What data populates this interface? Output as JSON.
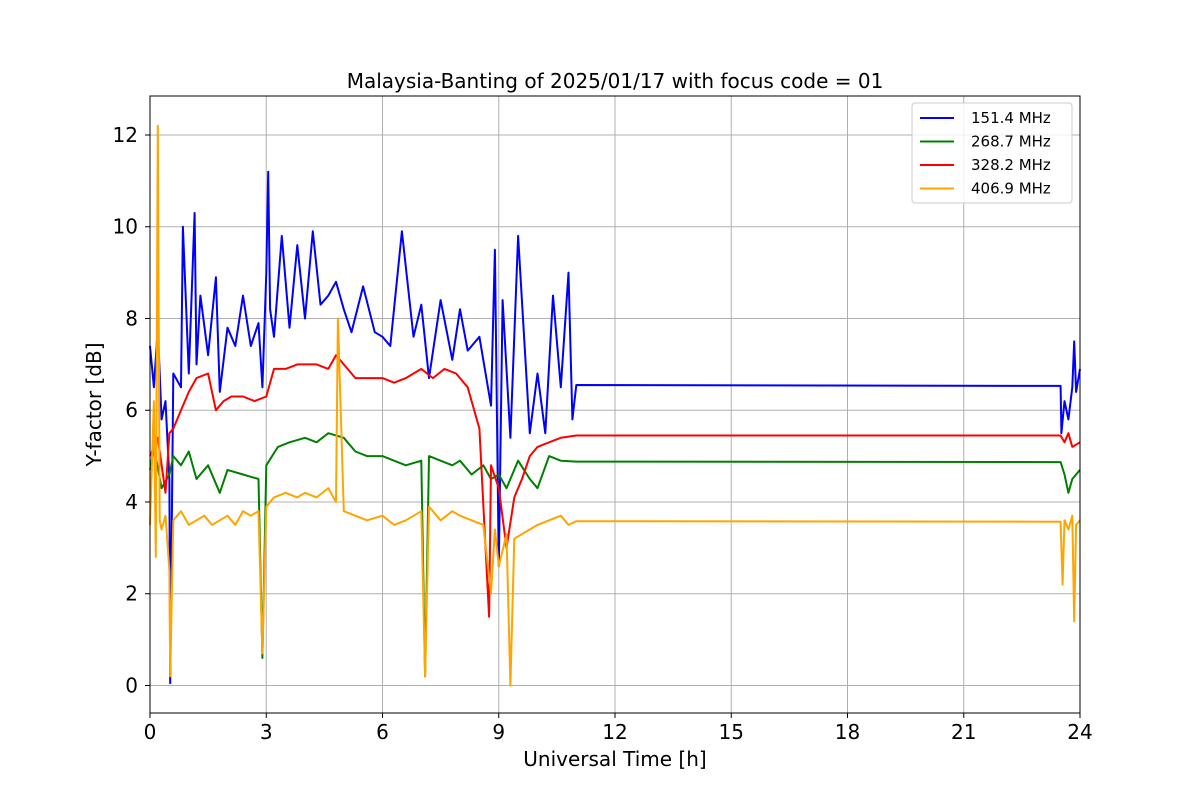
{
  "chart_data": {
    "type": "line",
    "title": "Malaysia-Banting of 2025/01/17 with focus code = 01",
    "xlabel": "Universal Time [h]",
    "ylabel": "Y-factor [dB]",
    "xlim": [
      0,
      24
    ],
    "ylim": [
      -0.6,
      12.85
    ],
    "xticks": [
      0,
      3,
      6,
      9,
      12,
      15,
      18,
      21,
      24
    ],
    "yticks": [
      0,
      2,
      4,
      6,
      8,
      10,
      12
    ],
    "grid": true,
    "legend_position": "top-right",
    "series": [
      {
        "name": "151.4 MHz",
        "color": "#0000ff",
        "x": [
          0,
          0.1,
          0.2,
          0.3,
          0.4,
          0.5,
          0.52,
          0.6,
          0.8,
          0.85,
          1.0,
          1.15,
          1.2,
          1.3,
          1.5,
          1.7,
          1.8,
          2.0,
          2.2,
          2.4,
          2.6,
          2.8,
          2.9,
          3.0,
          3.05,
          3.1,
          3.2,
          3.4,
          3.6,
          3.8,
          4.0,
          4.2,
          4.4,
          4.6,
          4.8,
          5.0,
          5.2,
          5.5,
          5.8,
          6.0,
          6.2,
          6.5,
          6.8,
          7.0,
          7.2,
          7.5,
          7.8,
          8.0,
          8.2,
          8.5,
          8.8,
          8.9,
          9.0,
          9.1,
          9.3,
          9.5,
          9.8,
          10.0,
          10.2,
          10.4,
          10.6,
          10.8,
          10.9,
          11.0,
          23.5,
          23.52,
          23.6,
          23.7,
          23.8,
          23.85,
          23.9,
          24.0
        ],
        "y": [
          7.4,
          6.5,
          7.8,
          5.8,
          6.2,
          4.5,
          0.05,
          6.8,
          6.5,
          10.0,
          6.8,
          10.3,
          7.0,
          8.5,
          7.2,
          8.9,
          6.4,
          7.8,
          7.4,
          8.5,
          7.4,
          7.9,
          6.5,
          9.0,
          11.2,
          8.2,
          7.6,
          9.8,
          7.8,
          9.6,
          8.0,
          9.9,
          8.3,
          8.5,
          8.8,
          8.2,
          7.7,
          8.7,
          7.7,
          7.6,
          7.4,
          9.9,
          7.6,
          8.3,
          6.7,
          8.4,
          7.1,
          8.2,
          7.3,
          7.6,
          6.1,
          9.5,
          2.6,
          8.4,
          5.4,
          9.8,
          5.5,
          6.8,
          5.5,
          8.5,
          6.5,
          9.0,
          5.8,
          6.55,
          6.53,
          5.5,
          6.2,
          5.8,
          6.5,
          7.5,
          6.4,
          6.9
        ]
      },
      {
        "name": "268.7 MHz",
        "color": "#008000",
        "x": [
          0,
          0.1,
          0.3,
          0.5,
          0.6,
          0.8,
          1.0,
          1.2,
          1.5,
          1.8,
          2.0,
          2.4,
          2.8,
          2.9,
          3.0,
          3.3,
          3.6,
          4.0,
          4.3,
          4.6,
          5.0,
          5.3,
          5.6,
          6.0,
          6.3,
          6.6,
          7.0,
          7.1,
          7.2,
          7.5,
          7.8,
          8.0,
          8.3,
          8.6,
          8.8,
          9.0,
          9.2,
          9.5,
          9.8,
          10.0,
          10.3,
          10.6,
          11.0,
          23.5,
          23.6,
          23.7,
          23.8,
          24.0
        ],
        "y": [
          4.7,
          5.2,
          4.3,
          4.6,
          5.0,
          4.8,
          5.1,
          4.5,
          4.8,
          4.2,
          4.7,
          4.6,
          4.5,
          0.6,
          4.8,
          5.2,
          5.3,
          5.4,
          5.3,
          5.5,
          5.4,
          5.1,
          5.0,
          5.0,
          4.9,
          4.8,
          4.9,
          0.2,
          5.0,
          4.9,
          4.8,
          4.9,
          4.6,
          4.8,
          4.5,
          4.6,
          4.3,
          4.9,
          4.5,
          4.3,
          5.0,
          4.9,
          4.88,
          4.87,
          4.6,
          4.2,
          4.5,
          4.7
        ]
      },
      {
        "name": "328.2 MHz",
        "color": "#ff0000",
        "x": [
          0,
          0.2,
          0.4,
          0.5,
          0.6,
          0.8,
          1.0,
          1.2,
          1.5,
          1.7,
          1.9,
          2.1,
          2.4,
          2.7,
          3.0,
          3.2,
          3.5,
          3.8,
          4.0,
          4.3,
          4.6,
          4.8,
          5.0,
          5.3,
          5.6,
          6.0,
          6.3,
          6.6,
          7.0,
          7.3,
          7.6,
          7.9,
          8.2,
          8.5,
          8.75,
          8.8,
          9.0,
          9.2,
          9.4,
          9.6,
          9.8,
          10.0,
          10.3,
          10.6,
          11.0,
          23.5,
          23.6,
          23.7,
          23.8,
          24.0
        ],
        "y": [
          5.0,
          5.4,
          4.2,
          5.5,
          5.6,
          6.0,
          6.4,
          6.7,
          6.8,
          6.0,
          6.2,
          6.3,
          6.3,
          6.2,
          6.3,
          6.9,
          6.9,
          7.0,
          7.0,
          7.0,
          6.9,
          7.2,
          7.0,
          6.7,
          6.7,
          6.7,
          6.6,
          6.7,
          6.9,
          6.7,
          6.9,
          6.8,
          6.5,
          5.6,
          1.5,
          4.8,
          4.3,
          3.0,
          4.1,
          4.5,
          5.0,
          5.2,
          5.3,
          5.4,
          5.45,
          5.45,
          5.3,
          5.5,
          5.2,
          5.3
        ]
      },
      {
        "name": "406.9 MHz",
        "color": "#ffa500",
        "x": [
          0,
          0.1,
          0.15,
          0.2,
          0.25,
          0.3,
          0.4,
          0.5,
          0.52,
          0.6,
          0.8,
          1.0,
          1.2,
          1.4,
          1.6,
          1.8,
          2.0,
          2.2,
          2.4,
          2.6,
          2.8,
          2.9,
          3.0,
          3.2,
          3.5,
          3.8,
          4.0,
          4.3,
          4.6,
          4.8,
          4.85,
          5.0,
          5.3,
          5.6,
          6.0,
          6.3,
          6.6,
          7.0,
          7.1,
          7.2,
          7.5,
          7.8,
          8.0,
          8.3,
          8.6,
          8.8,
          8.9,
          9.0,
          9.2,
          9.3,
          9.4,
          9.6,
          9.8,
          10.0,
          10.3,
          10.6,
          10.8,
          11.0,
          23.5,
          23.55,
          23.6,
          23.7,
          23.8,
          23.85,
          23.9,
          24.0
        ],
        "y": [
          3.5,
          6.2,
          2.8,
          12.2,
          3.6,
          3.4,
          3.7,
          2.5,
          0.2,
          3.6,
          3.8,
          3.5,
          3.6,
          3.7,
          3.5,
          3.6,
          3.7,
          3.5,
          3.8,
          3.7,
          3.8,
          0.7,
          3.9,
          4.1,
          4.2,
          4.1,
          4.2,
          4.1,
          4.3,
          4.0,
          8.0,
          3.8,
          3.7,
          3.6,
          3.7,
          3.5,
          3.6,
          3.8,
          0.2,
          3.9,
          3.6,
          3.8,
          3.7,
          3.6,
          3.5,
          2.0,
          3.4,
          2.6,
          3.3,
          0.0,
          3.2,
          3.3,
          3.4,
          3.5,
          3.6,
          3.7,
          3.5,
          3.58,
          3.57,
          2.2,
          3.6,
          3.4,
          3.7,
          1.4,
          3.5,
          3.6
        ]
      }
    ]
  }
}
